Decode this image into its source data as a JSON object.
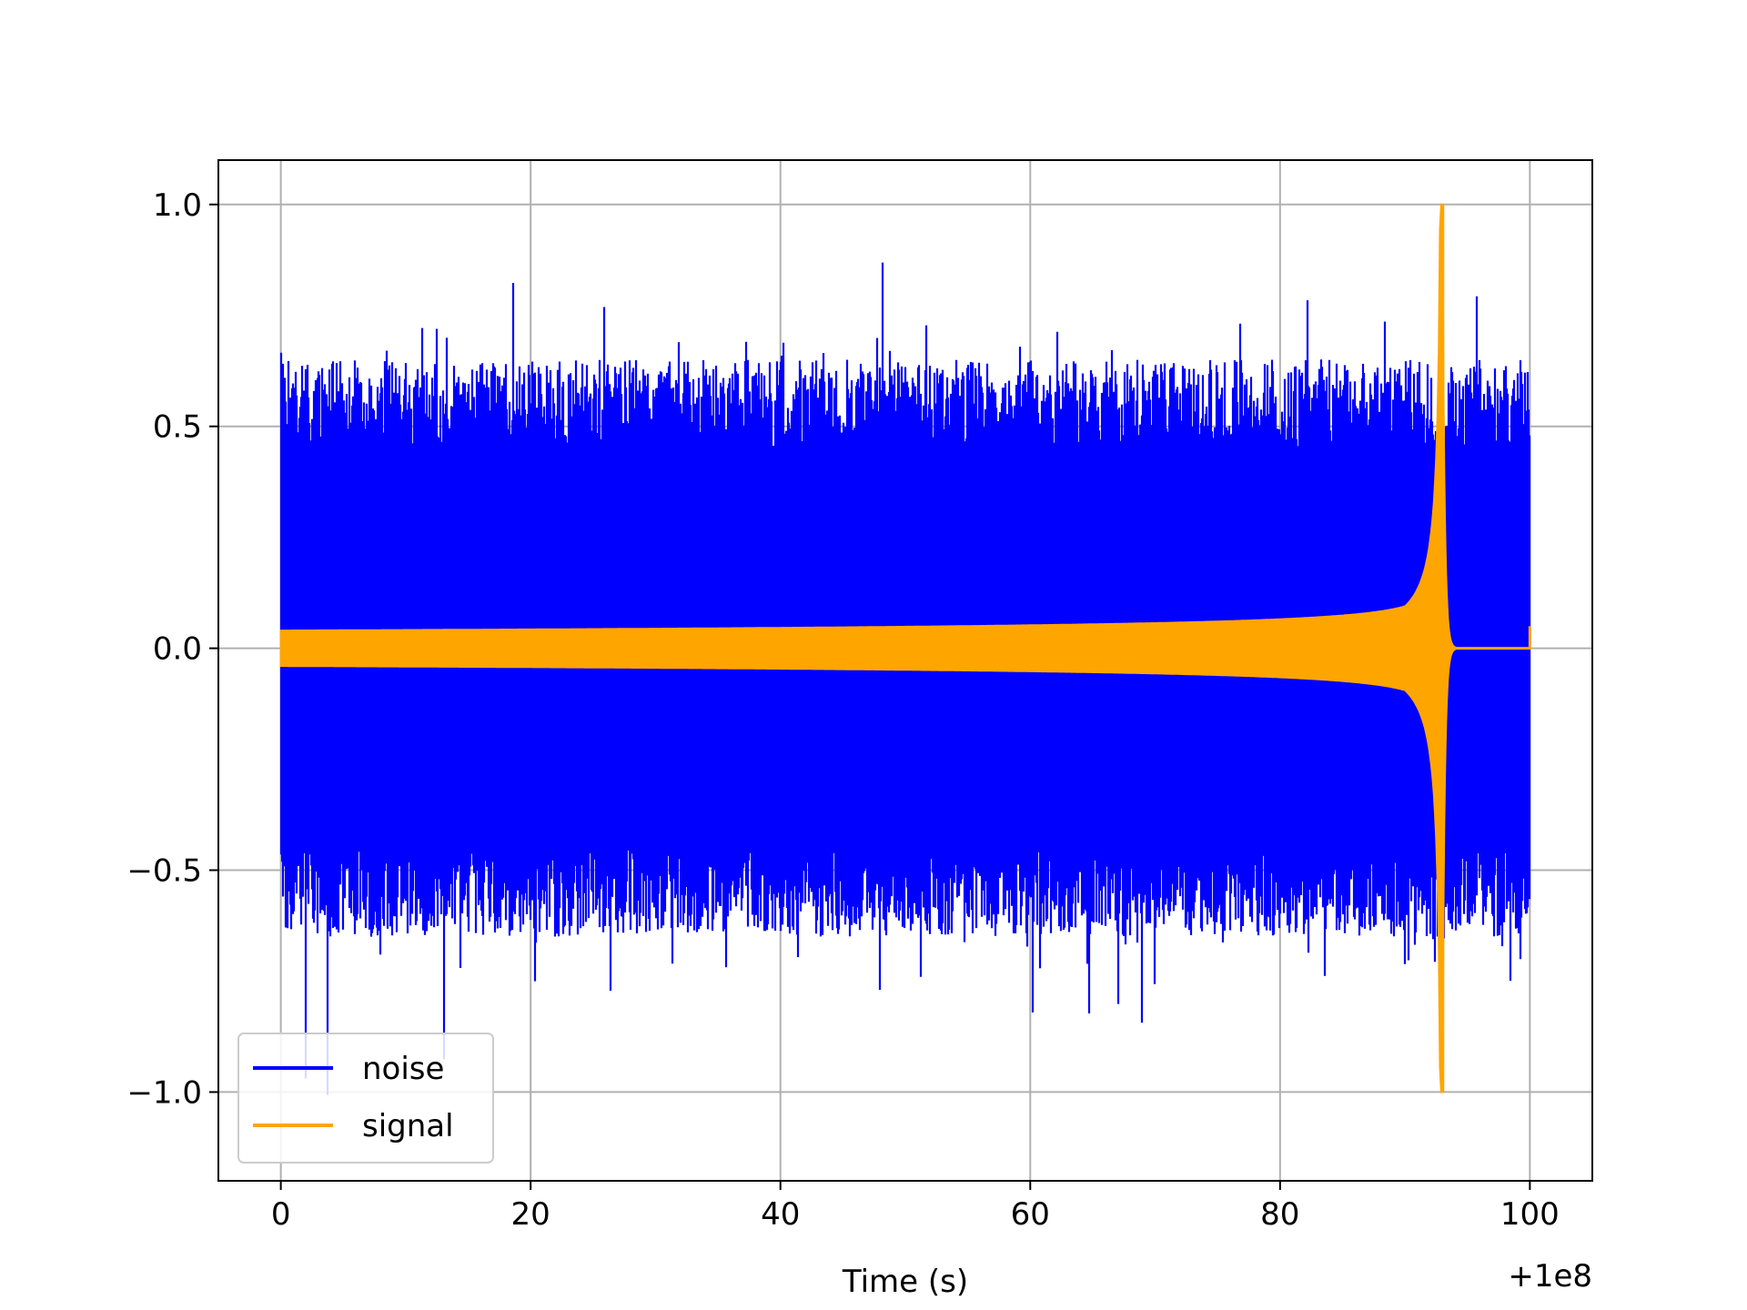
{
  "chart_data": {
    "type": "line",
    "title": "",
    "xlabel": "Time (s)",
    "ylabel": "",
    "x_offset_text": "+1e8",
    "xlim": [
      -5,
      105
    ],
    "ylim": [
      -1.2,
      1.1
    ],
    "xticks": [
      0,
      20,
      40,
      60,
      80,
      100
    ],
    "xtick_labels": [
      "0",
      "20",
      "40",
      "60",
      "80",
      "100"
    ],
    "yticks": [
      -1.0,
      -0.5,
      0.0,
      0.5,
      1.0
    ],
    "ytick_labels": [
      "−1.0",
      "−0.5",
      "0.0",
      "0.5",
      "1.0"
    ],
    "grid": true,
    "legend_position": "lower-left",
    "series": [
      {
        "name": "noise",
        "color": "#0000ff",
        "description_values": {
          "x_range": [
            0,
            100
          ],
          "typical_amplitude": 0.6,
          "max": 1.0,
          "min": -1.1
        }
      },
      {
        "name": "signal",
        "color": "#ffa500",
        "description_values": {
          "x_range": [
            0,
            100
          ],
          "chirp_merger_time": 93,
          "start_amplitude": 0.04,
          "peak_amplitude": 1.0,
          "post_merger_amplitude": 0.0
        }
      }
    ]
  }
}
